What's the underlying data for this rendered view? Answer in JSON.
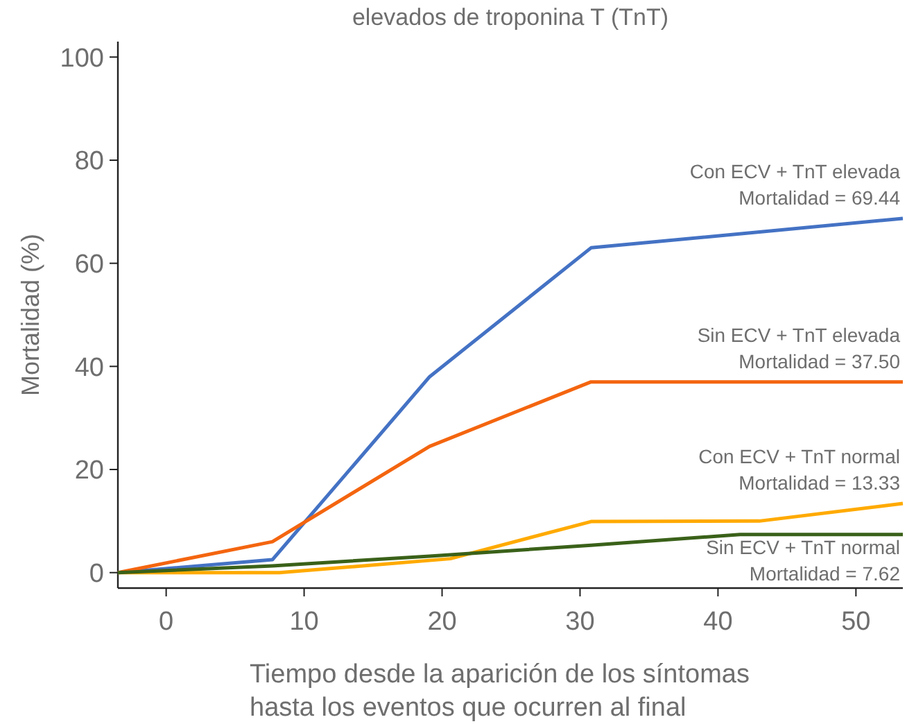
{
  "chart_data": {
    "type": "line",
    "title": "elevados de troponina T (TnT)",
    "xlabel": "Tiempo desde la aparición de los síntomas hasta los eventos que ocurren al final",
    "ylabel": "Mortalidad (%)",
    "xlim": [
      -3.5,
      53.4
    ],
    "xticks": [
      0,
      10,
      20,
      30,
      40,
      50
    ],
    "ylim": [
      -3,
      103
    ],
    "yticks": [
      0,
      20,
      40,
      60,
      80,
      100
    ],
    "grid": false,
    "marker": "none",
    "line_style": "solid",
    "series": [
      {
        "name": "Con ECV + TnT elevada",
        "color": "#4472c4",
        "x": [
          -3.5,
          7.7,
          19.1,
          30.8,
          53.4
        ],
        "values": [
          0,
          2.5,
          38,
          63,
          68.7
        ]
      },
      {
        "name": "Sin ECV + TnT elevada",
        "color": "#f4650f",
        "x": [
          -3.5,
          7.7,
          19.1,
          30.8,
          53.4
        ],
        "values": [
          0,
          6,
          24.5,
          37,
          37
        ]
      },
      {
        "name": "Con ECV + TnT normal",
        "color": "#ffaa00",
        "x": [
          -3.5,
          8.2,
          20.6,
          30.8,
          43,
          53.4
        ],
        "values": [
          0,
          0,
          2.7,
          9.9,
          10,
          13.4
        ]
      },
      {
        "name": "Sin ECV + TnT normal",
        "color": "#3a6119",
        "x": [
          -3.5,
          7.7,
          19.1,
          30.8,
          41.6,
          53.4
        ],
        "values": [
          0,
          1.3,
          3.2,
          5.3,
          7.4,
          7.4
        ]
      }
    ],
    "annotations": [
      "Mortalidad = 69.44",
      "Mortalidad = 37.50",
      "Mortalidad = 13.33",
      "Mortalidad = 7.62"
    ]
  }
}
